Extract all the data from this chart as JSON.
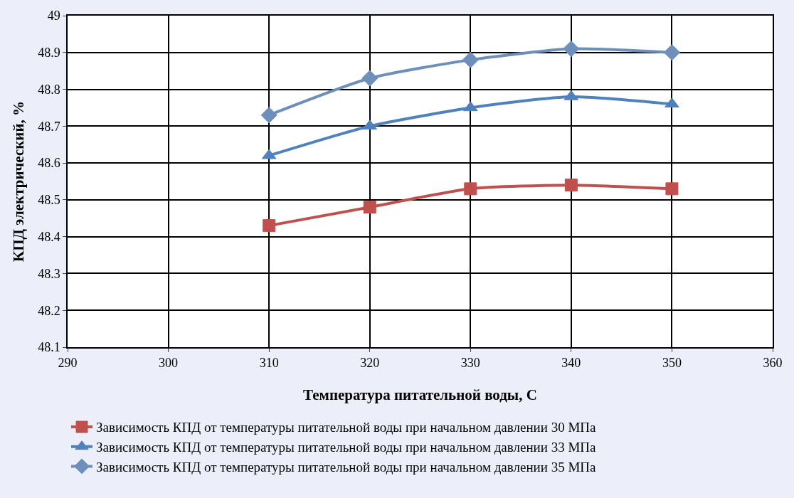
{
  "chart_data": {
    "type": "line",
    "xlabel": "Температура питательной воды, С",
    "ylabel": "КПД электрический, %",
    "x": [
      310,
      320,
      330,
      340,
      350
    ],
    "series": [
      {
        "name": "Зависимость КПД от температуры питательной воды при начальном давлении 30 МПа",
        "color": "#c0504d",
        "marker": "square",
        "values": [
          48.43,
          48.48,
          48.53,
          48.54,
          48.53
        ]
      },
      {
        "name": "Зависимость КПД от температуры питательной воды при начальном давлении 33 МПа",
        "color": "#4f81bd",
        "marker": "triangle",
        "values": [
          48.62,
          48.7,
          48.75,
          48.78,
          48.76
        ]
      },
      {
        "name": "Зависимость КПД от температуры питательной воды при начальном давлении 35 МПа",
        "color": "#6d8fba",
        "marker": "diamond",
        "values": [
          48.73,
          48.83,
          48.88,
          48.91,
          48.9
        ]
      }
    ],
    "xlim": [
      290,
      360
    ],
    "xticks": [
      290,
      300,
      310,
      320,
      330,
      340,
      350,
      360
    ],
    "ylim": [
      48.1,
      49
    ],
    "yticks": [
      48.1,
      48.2,
      48.3,
      48.4,
      48.5,
      48.6,
      48.7,
      48.8,
      48.9,
      49
    ],
    "grid": true,
    "legend": "bottom",
    "line_style": "solid"
  }
}
